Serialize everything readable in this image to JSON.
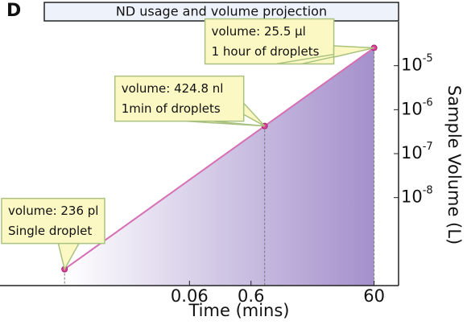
{
  "panel_label": "D",
  "chart_data": {
    "type": "line",
    "title": "ND usage and volume projection",
    "x_label": "Time (mins)",
    "y_label": "Sample Volume (L)",
    "x": [
      0.00056,
      1,
      60
    ],
    "series": [
      {
        "name": "Sample volume",
        "color": "#d66fb4",
        "values": [
          2.36e-10,
          4.248e-07,
          2.55e-05
        ]
      }
    ],
    "annotations": [
      {
        "lines": [
          "volume: 236 pl",
          "Single droplet"
        ]
      },
      {
        "lines": [
          "volume: 424.8 nl",
          "1min of droplets"
        ]
      },
      {
        "lines": [
          "volume: 25.5 µl",
          "1 hour of droplets"
        ]
      }
    ],
    "xlim": [
      5e-05,
      150
    ],
    "ylim": [
      1e-10,
      0.0001
    ],
    "xscale": "log",
    "yscale": "log",
    "xticks": [
      0.06,
      0.6,
      60
    ],
    "yticks": [
      {
        "value": 1e-08,
        "label": "10^-8"
      },
      {
        "value": 1e-07,
        "label": "10^-7"
      },
      {
        "value": 1e-06,
        "label": "10^-6"
      },
      {
        "value": 1e-05,
        "label": "10^-5"
      }
    ],
    "fill_color": "#9a84c6"
  }
}
